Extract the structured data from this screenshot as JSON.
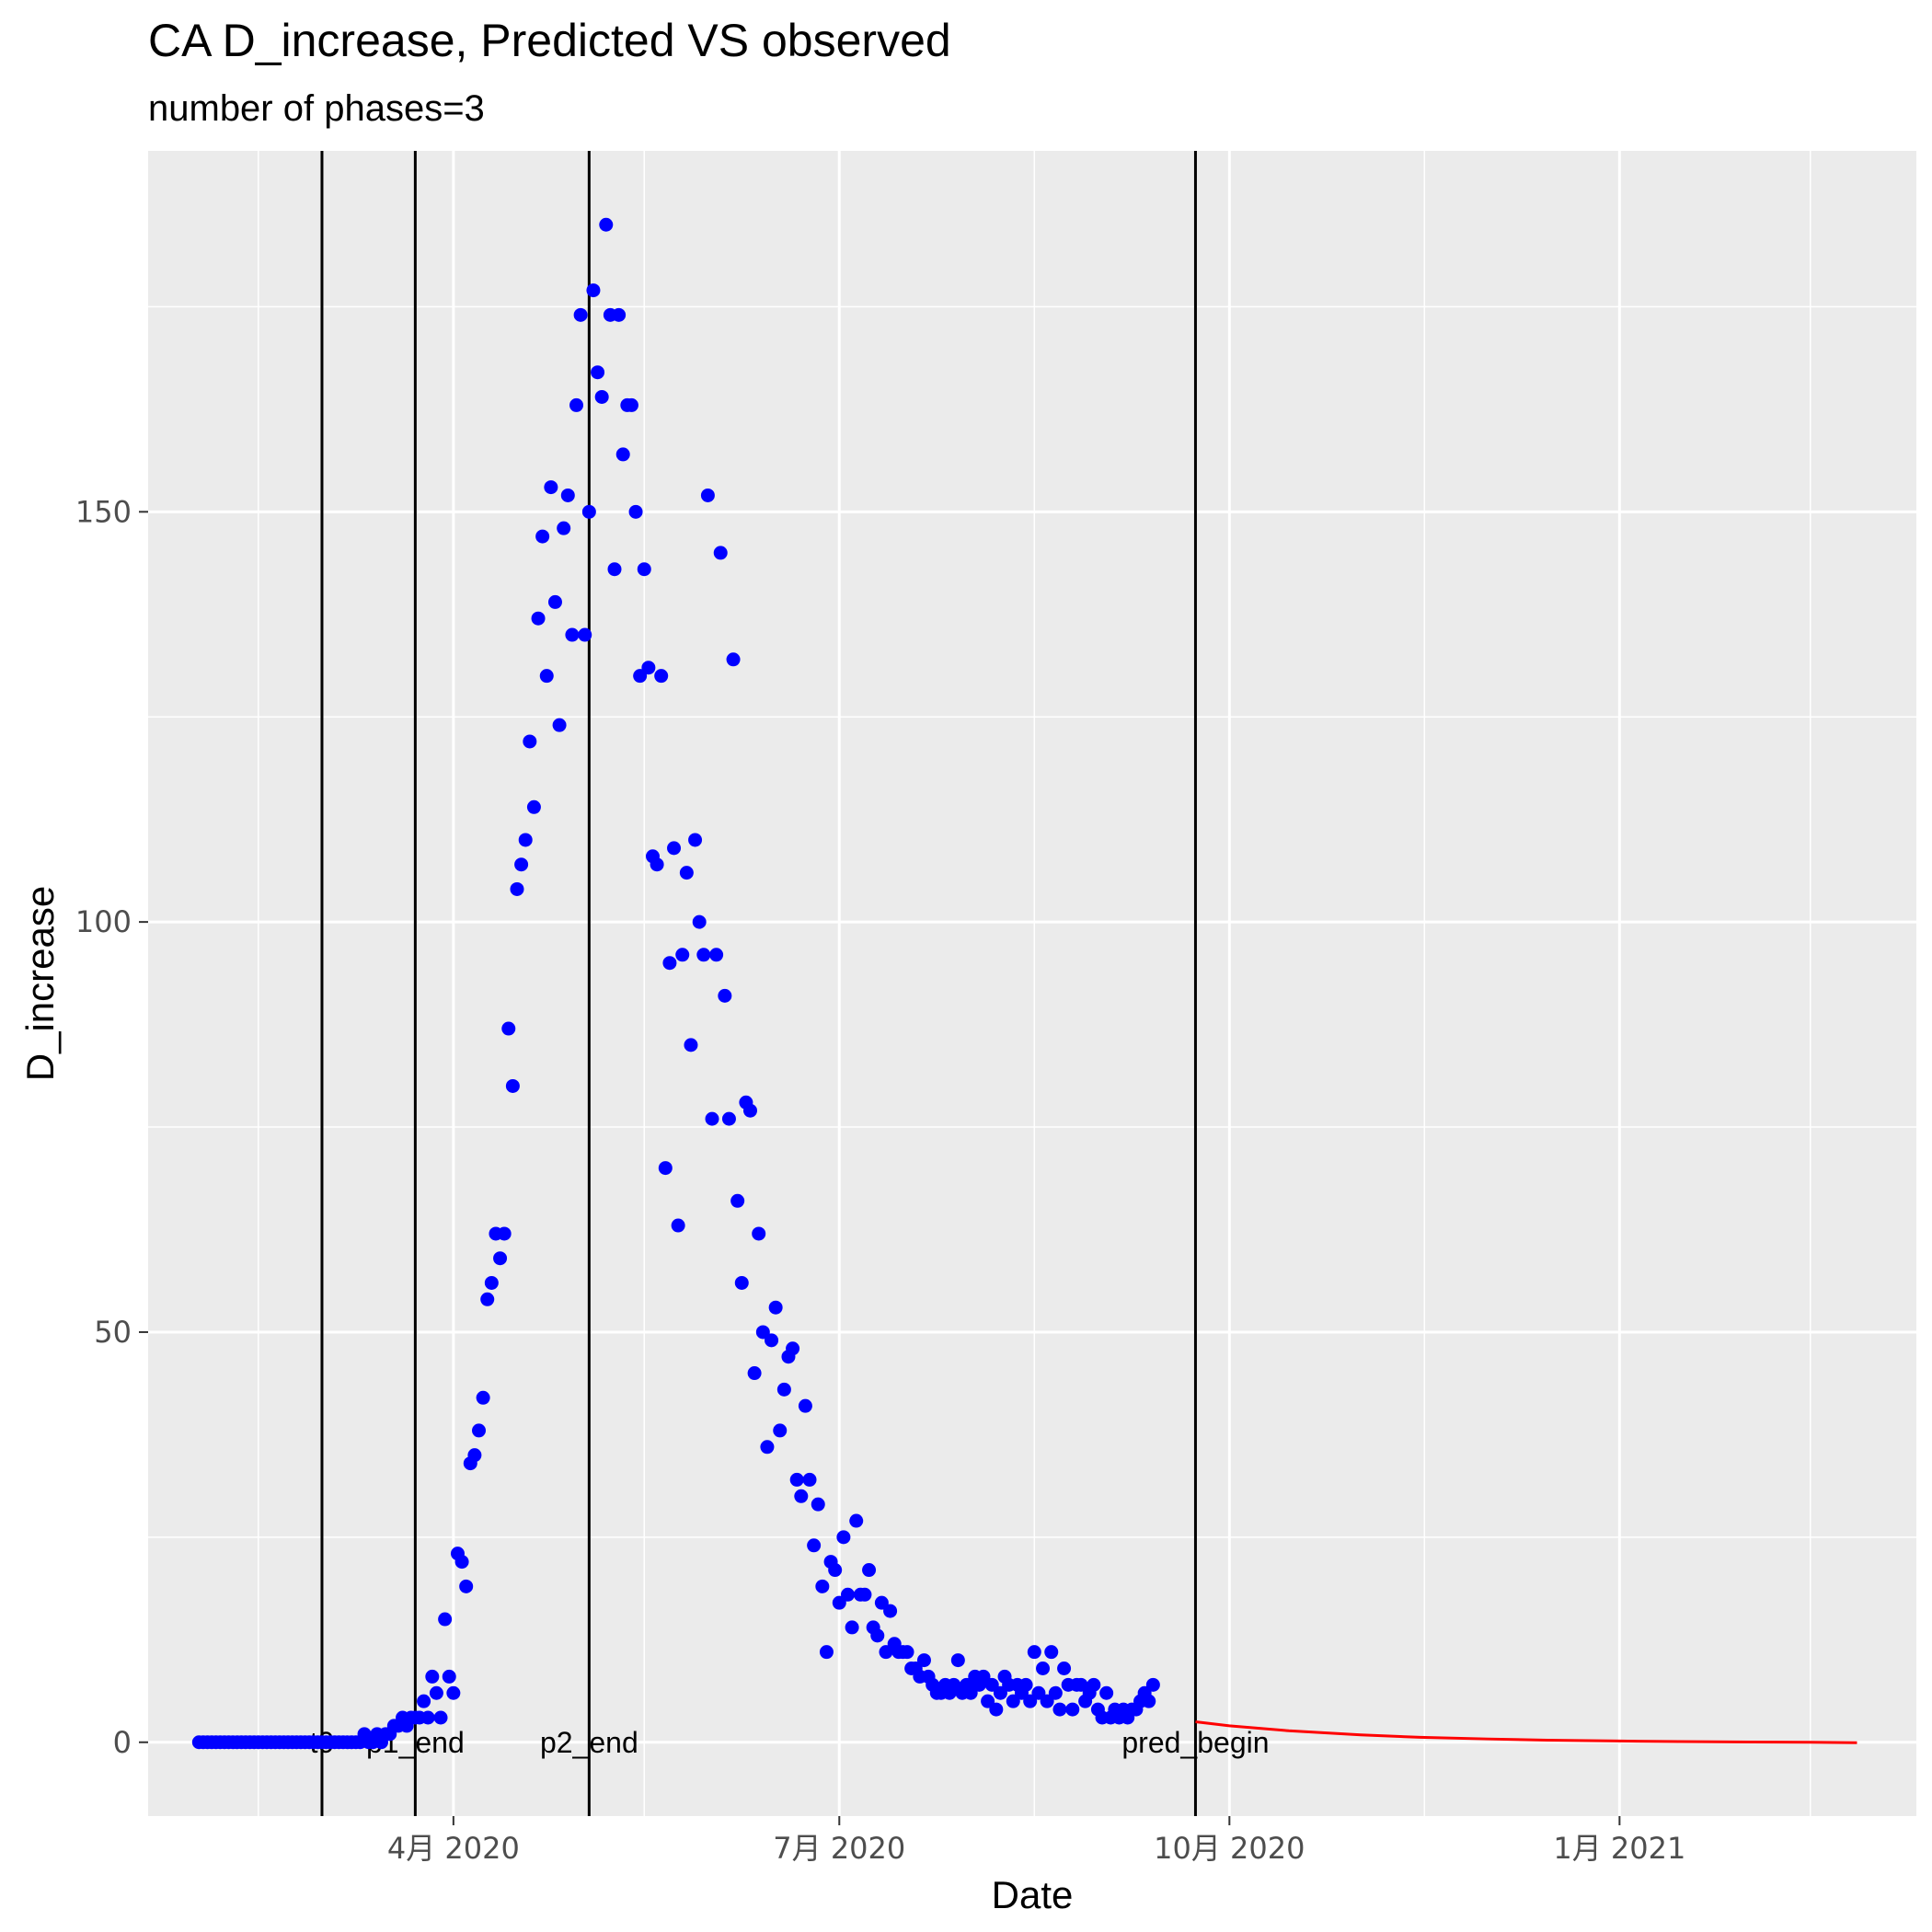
{
  "chart_data": {
    "type": "scatter",
    "title": "CA D_increase, Predicted VS observed",
    "subtitle": "number of phases=3",
    "xlabel": "Date",
    "ylabel": "D_increase",
    "xlim": [
      "2020-01-20",
      "2021-03-12"
    ],
    "ylim": [
      -9,
      194
    ],
    "x_ticks": [
      {
        "date": "2020-04-01",
        "label": "4月 2020"
      },
      {
        "date": "2020-07-01",
        "label": "7月 2020"
      },
      {
        "date": "2020-10-01",
        "label": "10月 2020"
      },
      {
        "date": "2021-01-01",
        "label": "1月 2021"
      }
    ],
    "x_minor_ticks": [
      "2020-02-15",
      "2020-05-16",
      "2020-08-16",
      "2020-11-16",
      "2021-02-15"
    ],
    "y_ticks": [
      0,
      50,
      100,
      150
    ],
    "y_minor_ticks": [
      25,
      75,
      125,
      175
    ],
    "grid": true,
    "panel_color": "#ebebeb",
    "vlines": [
      {
        "date": "2020-03-01",
        "label": "t0"
      },
      {
        "date": "2020-03-23",
        "label": "p1_end"
      },
      {
        "date": "2020-05-03",
        "label": "p2_end"
      },
      {
        "date": "2020-09-23",
        "label": "pred_begin"
      }
    ],
    "series": [
      {
        "style": "points",
        "color": "#0000ff",
        "points": [
          [
            "2020-02-01",
            0
          ],
          [
            "2020-02-02",
            0
          ],
          [
            "2020-02-03",
            0
          ],
          [
            "2020-02-04",
            0
          ],
          [
            "2020-02-05",
            0
          ],
          [
            "2020-02-06",
            0
          ],
          [
            "2020-02-07",
            0
          ],
          [
            "2020-02-08",
            0
          ],
          [
            "2020-02-09",
            0
          ],
          [
            "2020-02-10",
            0
          ],
          [
            "2020-02-11",
            0
          ],
          [
            "2020-02-12",
            0
          ],
          [
            "2020-02-13",
            0
          ],
          [
            "2020-02-14",
            0
          ],
          [
            "2020-02-15",
            0
          ],
          [
            "2020-02-16",
            0
          ],
          [
            "2020-02-17",
            0
          ],
          [
            "2020-02-18",
            0
          ],
          [
            "2020-02-19",
            0
          ],
          [
            "2020-02-20",
            0
          ],
          [
            "2020-02-21",
            0
          ],
          [
            "2020-02-22",
            0
          ],
          [
            "2020-02-23",
            0
          ],
          [
            "2020-02-24",
            0
          ],
          [
            "2020-02-25",
            0
          ],
          [
            "2020-02-26",
            0
          ],
          [
            "2020-02-27",
            0
          ],
          [
            "2020-02-28",
            0
          ],
          [
            "2020-02-29",
            0
          ],
          [
            "2020-03-01",
            0
          ],
          [
            "2020-03-02",
            0
          ],
          [
            "2020-03-03",
            0
          ],
          [
            "2020-03-04",
            0
          ],
          [
            "2020-03-05",
            0
          ],
          [
            "2020-03-06",
            0
          ],
          [
            "2020-03-07",
            0
          ],
          [
            "2020-03-08",
            0
          ],
          [
            "2020-03-09",
            0
          ],
          [
            "2020-03-10",
            0
          ],
          [
            "2020-03-11",
            1
          ],
          [
            "2020-03-12",
            0
          ],
          [
            "2020-03-13",
            0
          ],
          [
            "2020-03-14",
            1
          ],
          [
            "2020-03-15",
            0
          ],
          [
            "2020-03-16",
            1
          ],
          [
            "2020-03-17",
            1
          ],
          [
            "2020-03-18",
            2
          ],
          [
            "2020-03-19",
            2
          ],
          [
            "2020-03-20",
            3
          ],
          [
            "2020-03-21",
            2
          ],
          [
            "2020-03-22",
            3
          ],
          [
            "2020-03-23",
            3
          ],
          [
            "2020-03-24",
            3
          ],
          [
            "2020-03-25",
            5
          ],
          [
            "2020-03-26",
            3
          ],
          [
            "2020-03-27",
            8
          ],
          [
            "2020-03-28",
            6
          ],
          [
            "2020-03-29",
            3
          ],
          [
            "2020-03-30",
            15
          ],
          [
            "2020-03-31",
            8
          ],
          [
            "2020-04-01",
            6
          ],
          [
            "2020-04-02",
            23
          ],
          [
            "2020-04-03",
            22
          ],
          [
            "2020-04-04",
            19
          ],
          [
            "2020-04-05",
            34
          ],
          [
            "2020-04-06",
            35
          ],
          [
            "2020-04-07",
            38
          ],
          [
            "2020-04-08",
            42
          ],
          [
            "2020-04-09",
            54
          ],
          [
            "2020-04-10",
            56
          ],
          [
            "2020-04-11",
            62
          ],
          [
            "2020-04-12",
            59
          ],
          [
            "2020-04-13",
            62
          ],
          [
            "2020-04-14",
            87
          ],
          [
            "2020-04-15",
            80
          ],
          [
            "2020-04-16",
            104
          ],
          [
            "2020-04-17",
            107
          ],
          [
            "2020-04-18",
            110
          ],
          [
            "2020-04-19",
            122
          ],
          [
            "2020-04-20",
            114
          ],
          [
            "2020-04-21",
            137
          ],
          [
            "2020-04-22",
            147
          ],
          [
            "2020-04-23",
            130
          ],
          [
            "2020-04-24",
            153
          ],
          [
            "2020-04-25",
            139
          ],
          [
            "2020-04-26",
            124
          ],
          [
            "2020-04-27",
            148
          ],
          [
            "2020-04-28",
            152
          ],
          [
            "2020-04-29",
            135
          ],
          [
            "2020-04-30",
            163
          ],
          [
            "2020-05-01",
            174
          ],
          [
            "2020-05-02",
            135
          ],
          [
            "2020-05-03",
            150
          ],
          [
            "2020-05-04",
            177
          ],
          [
            "2020-05-05",
            167
          ],
          [
            "2020-05-06",
            164
          ],
          [
            "2020-05-07",
            185
          ],
          [
            "2020-05-08",
            174
          ],
          [
            "2020-05-09",
            143
          ],
          [
            "2020-05-10",
            174
          ],
          [
            "2020-05-11",
            157
          ],
          [
            "2020-05-12",
            163
          ],
          [
            "2020-05-13",
            163
          ],
          [
            "2020-05-14",
            150
          ],
          [
            "2020-05-15",
            130
          ],
          [
            "2020-05-16",
            143
          ],
          [
            "2020-05-17",
            131
          ],
          [
            "2020-05-18",
            108
          ],
          [
            "2020-05-19",
            107
          ],
          [
            "2020-05-20",
            130
          ],
          [
            "2020-05-21",
            70
          ],
          [
            "2020-05-22",
            95
          ],
          [
            "2020-05-23",
            109
          ],
          [
            "2020-05-24",
            63
          ],
          [
            "2020-05-25",
            96
          ],
          [
            "2020-05-26",
            106
          ],
          [
            "2020-05-27",
            85
          ],
          [
            "2020-05-28",
            110
          ],
          [
            "2020-05-29",
            100
          ],
          [
            "2020-05-30",
            96
          ],
          [
            "2020-05-31",
            152
          ],
          [
            "2020-06-01",
            76
          ],
          [
            "2020-06-02",
            96
          ],
          [
            "2020-06-03",
            145
          ],
          [
            "2020-06-04",
            91
          ],
          [
            "2020-06-05",
            76
          ],
          [
            "2020-06-06",
            132
          ],
          [
            "2020-06-07",
            66
          ],
          [
            "2020-06-08",
            56
          ],
          [
            "2020-06-09",
            78
          ],
          [
            "2020-06-10",
            77
          ],
          [
            "2020-06-11",
            45
          ],
          [
            "2020-06-12",
            62
          ],
          [
            "2020-06-13",
            50
          ],
          [
            "2020-06-14",
            36
          ],
          [
            "2020-06-15",
            49
          ],
          [
            "2020-06-16",
            53
          ],
          [
            "2020-06-17",
            38
          ],
          [
            "2020-06-18",
            43
          ],
          [
            "2020-06-19",
            47
          ],
          [
            "2020-06-20",
            48
          ],
          [
            "2020-06-21",
            32
          ],
          [
            "2020-06-22",
            30
          ],
          [
            "2020-06-23",
            41
          ],
          [
            "2020-06-24",
            32
          ],
          [
            "2020-06-25",
            24
          ],
          [
            "2020-06-26",
            29
          ],
          [
            "2020-06-27",
            19
          ],
          [
            "2020-06-28",
            11
          ],
          [
            "2020-06-29",
            22
          ],
          [
            "2020-06-30",
            21
          ],
          [
            "2020-07-01",
            17
          ],
          [
            "2020-07-02",
            25
          ],
          [
            "2020-07-03",
            18
          ],
          [
            "2020-07-04",
            14
          ],
          [
            "2020-07-05",
            27
          ],
          [
            "2020-07-06",
            18
          ],
          [
            "2020-07-07",
            18
          ],
          [
            "2020-07-08",
            21
          ],
          [
            "2020-07-09",
            14
          ],
          [
            "2020-07-10",
            13
          ],
          [
            "2020-07-11",
            17
          ],
          [
            "2020-07-12",
            11
          ],
          [
            "2020-07-13",
            16
          ],
          [
            "2020-07-14",
            12
          ],
          [
            "2020-07-15",
            11
          ],
          [
            "2020-07-16",
            11
          ],
          [
            "2020-07-17",
            11
          ],
          [
            "2020-07-18",
            9
          ],
          [
            "2020-07-19",
            9
          ],
          [
            "2020-07-20",
            8
          ],
          [
            "2020-07-21",
            10
          ],
          [
            "2020-07-22",
            8
          ],
          [
            "2020-07-23",
            7
          ],
          [
            "2020-07-24",
            6
          ],
          [
            "2020-07-25",
            6
          ],
          [
            "2020-07-26",
            7
          ],
          [
            "2020-07-27",
            6
          ],
          [
            "2020-07-28",
            7
          ],
          [
            "2020-07-29",
            10
          ],
          [
            "2020-07-30",
            6
          ],
          [
            "2020-07-31",
            7
          ],
          [
            "2020-08-01",
            6
          ],
          [
            "2020-08-02",
            8
          ],
          [
            "2020-08-03",
            7
          ],
          [
            "2020-08-04",
            8
          ],
          [
            "2020-08-05",
            5
          ],
          [
            "2020-08-06",
            7
          ],
          [
            "2020-08-07",
            4
          ],
          [
            "2020-08-08",
            6
          ],
          [
            "2020-08-09",
            8
          ],
          [
            "2020-08-10",
            7
          ],
          [
            "2020-08-11",
            5
          ],
          [
            "2020-08-12",
            7
          ],
          [
            "2020-08-13",
            6
          ],
          [
            "2020-08-14",
            7
          ],
          [
            "2020-08-15",
            5
          ],
          [
            "2020-08-16",
            11
          ],
          [
            "2020-08-17",
            6
          ],
          [
            "2020-08-18",
            9
          ],
          [
            "2020-08-19",
            5
          ],
          [
            "2020-08-20",
            11
          ],
          [
            "2020-08-21",
            6
          ],
          [
            "2020-08-22",
            4
          ],
          [
            "2020-08-23",
            9
          ],
          [
            "2020-08-24",
            7
          ],
          [
            "2020-08-25",
            4
          ],
          [
            "2020-08-26",
            7
          ],
          [
            "2020-08-27",
            7
          ],
          [
            "2020-08-28",
            5
          ],
          [
            "2020-08-29",
            6
          ],
          [
            "2020-08-30",
            7
          ],
          [
            "2020-08-31",
            4
          ],
          [
            "2020-09-01",
            3
          ],
          [
            "2020-09-02",
            6
          ],
          [
            "2020-09-03",
            3
          ],
          [
            "2020-09-04",
            4
          ],
          [
            "2020-09-05",
            3
          ],
          [
            "2020-09-06",
            4
          ],
          [
            "2020-09-07",
            3
          ],
          [
            "2020-09-08",
            4
          ],
          [
            "2020-09-09",
            4
          ],
          [
            "2020-09-10",
            5
          ],
          [
            "2020-09-11",
            6
          ],
          [
            "2020-09-12",
            5
          ],
          [
            "2020-09-13",
            7
          ]
        ]
      },
      {
        "style": "line",
        "color": "#ff0000",
        "points": [
          [
            "2020-09-23",
            2.5
          ],
          [
            "2020-10-01",
            2.0
          ],
          [
            "2020-10-15",
            1.4
          ],
          [
            "2020-11-01",
            0.9
          ],
          [
            "2020-11-15",
            0.6
          ],
          [
            "2020-12-01",
            0.4
          ],
          [
            "2020-12-15",
            0.25
          ],
          [
            "2021-01-01",
            0.15
          ],
          [
            "2021-01-15",
            0.08
          ],
          [
            "2021-02-01",
            0.03
          ],
          [
            "2021-02-15",
            0.0
          ],
          [
            "2021-02-26",
            -0.05
          ]
        ]
      }
    ]
  }
}
